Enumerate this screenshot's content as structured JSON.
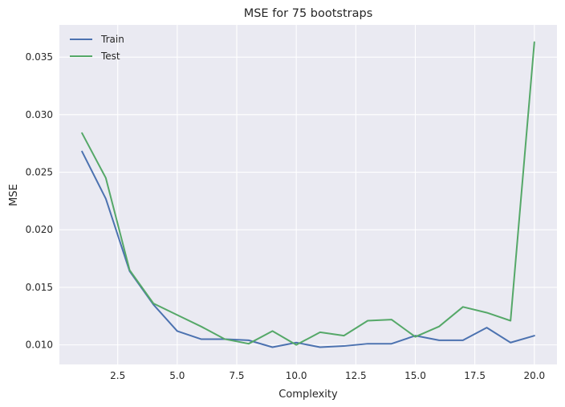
{
  "chart_data": {
    "type": "line",
    "title": "MSE for 75 bootstraps",
    "xlabel": "Complexity",
    "ylabel": "MSE",
    "xlim": [
      0.05,
      20.95
    ],
    "ylim": [
      0.0083,
      0.0378
    ],
    "xticks": [
      2.5,
      5.0,
      7.5,
      10.0,
      12.5,
      15.0,
      17.5,
      20.0
    ],
    "xtick_labels": [
      "2.5",
      "5.0",
      "7.5",
      "10.0",
      "12.5",
      "15.0",
      "17.5",
      "20.0"
    ],
    "yticks": [
      0.01,
      0.015,
      0.02,
      0.025,
      0.03,
      0.035
    ],
    "ytick_labels": [
      "0.010",
      "0.015",
      "0.020",
      "0.025",
      "0.030",
      "0.035"
    ],
    "grid": true,
    "legend_position": "top-left",
    "x": [
      1,
      2,
      3,
      4,
      5,
      6,
      7,
      8,
      9,
      10,
      11,
      12,
      13,
      14,
      15,
      16,
      17,
      18,
      19,
      20
    ],
    "series": [
      {
        "name": "Train",
        "color": "#4c72b0",
        "values": [
          0.0268,
          0.0227,
          0.0164,
          0.0135,
          0.0112,
          0.0105,
          0.0105,
          0.0104,
          0.0098,
          0.0102,
          0.0098,
          0.0099,
          0.0101,
          0.0101,
          0.0108,
          0.0104,
          0.0104,
          0.0115,
          0.0102,
          0.0108
        ]
      },
      {
        "name": "Test",
        "color": "#55a868",
        "values": [
          0.0284,
          0.0245,
          0.0165,
          0.0136,
          0.0126,
          0.0116,
          0.0105,
          0.0101,
          0.0112,
          0.01,
          0.0111,
          0.0108,
          0.0121,
          0.0122,
          0.0107,
          0.0116,
          0.0133,
          0.0128,
          0.0121,
          0.0363
        ]
      }
    ]
  }
}
